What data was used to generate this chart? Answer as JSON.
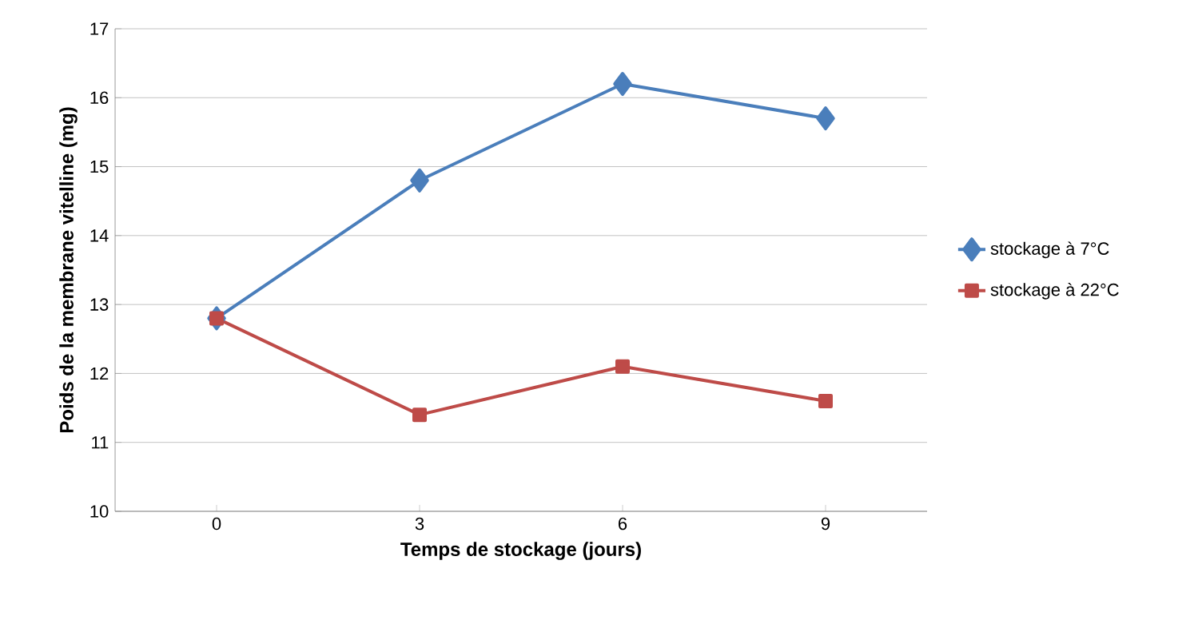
{
  "chart_data": {
    "type": "line",
    "xlabel": "Temps de stockage (jours)",
    "ylabel": "Poids de la membrane vitelline (mg)",
    "categories": [
      "0",
      "3",
      "6",
      "9"
    ],
    "series": [
      {
        "name": "stockage à 7°C",
        "color": "#4a7ebb",
        "marker": "diamond",
        "values": [
          12.8,
          14.8,
          16.2,
          15.7
        ]
      },
      {
        "name": "stockage à 22°C",
        "color": "#be4b48",
        "marker": "square",
        "values": [
          12.8,
          11.4,
          12.1,
          11.6
        ]
      }
    ],
    "ylim": [
      10,
      17
    ],
    "yticks": [
      10,
      11,
      12,
      13,
      14,
      15,
      16,
      17
    ],
    "grid": "y",
    "legend": "right",
    "line_style": "solid"
  }
}
